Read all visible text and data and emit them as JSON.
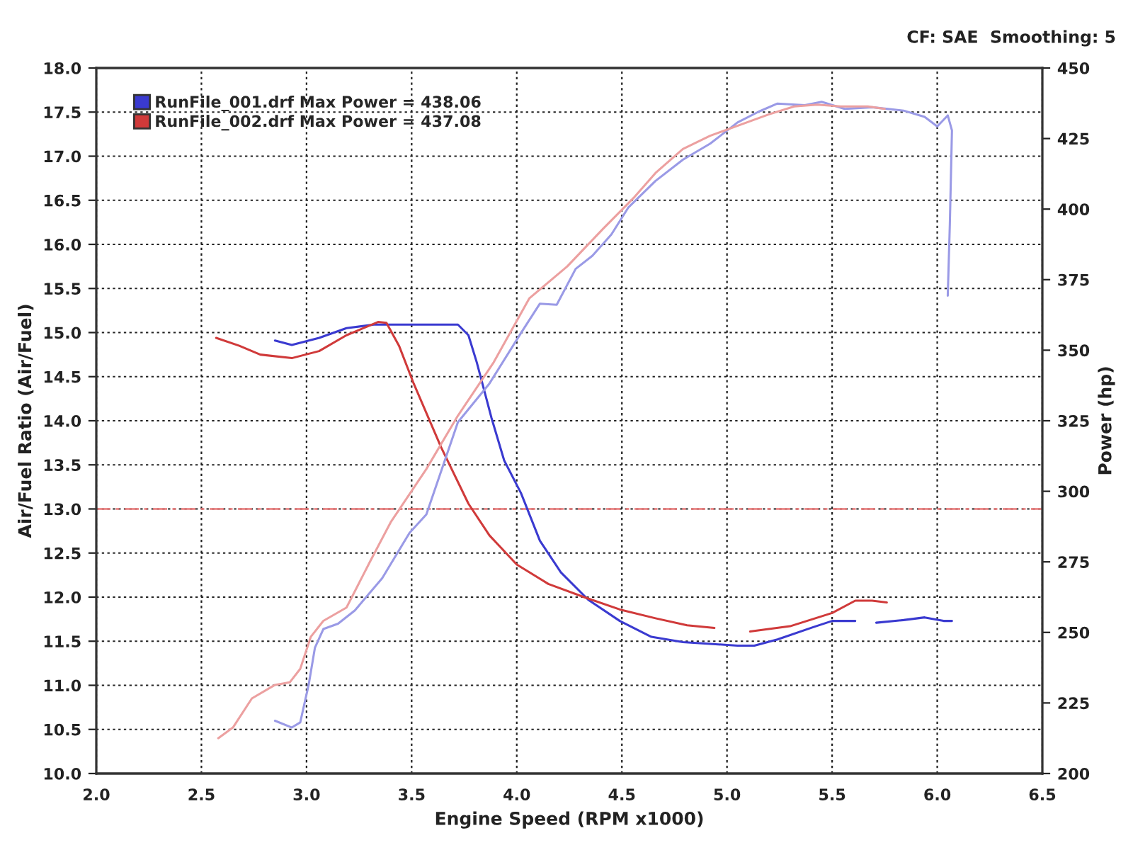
{
  "chart_data": {
    "type": "line",
    "xlabel": "Engine Speed (RPM x1000)",
    "ylabel": "Air/Fuel Ratio (Air/Fuel)",
    "y2label": "Power (hp)",
    "annotations": [
      "CF: SAE  Smoothing: 5"
    ],
    "xlim": [
      2.0,
      6.5
    ],
    "xticks": [
      {
        "value": 2,
        "label": "2.0"
      },
      2.5,
      {
        "value": 3,
        "label": "3.0"
      },
      3.5,
      {
        "value": 4,
        "label": "4.0"
      },
      4.5,
      {
        "value": 5,
        "label": "5.0"
      },
      5.5,
      {
        "value": 6,
        "label": "6.0"
      },
      6.5
    ],
    "ylim": [
      10.0,
      18.0
    ],
    "yticks": [
      {
        "value": 10,
        "label": "10.0"
      },
      10.5,
      {
        "value": 11,
        "label": "11.0"
      },
      11.5,
      {
        "value": 12,
        "label": "12.0"
      },
      12.5,
      {
        "value": 13,
        "label": "13.0"
      },
      13.5,
      {
        "value": 14,
        "label": "14.0"
      },
      14.5,
      {
        "value": 15,
        "label": "15.0"
      },
      15.5,
      {
        "value": 16,
        "label": "16.0"
      },
      16.5,
      {
        "value": 17,
        "label": "17.0"
      },
      17.5,
      {
        "value": 18,
        "label": "18.0"
      }
    ],
    "y2lim": [
      200,
      450
    ],
    "y2ticks": [
      200,
      225,
      250,
      275,
      300,
      325,
      350,
      375,
      400,
      425,
      450
    ],
    "grid": true,
    "legend": "top left",
    "ref_lines": [
      {
        "axis": "y",
        "value": 13.0,
        "color": "#e87878",
        "line_style": "dashed"
      }
    ],
    "series": [
      {
        "name": "RunFile_001.drf Max Power = 438.06",
        "color": "#3a3ad0",
        "x": [
          2.85,
          2.93,
          3.06,
          3.19,
          3.32,
          3.51,
          3.72,
          3.77,
          3.81,
          3.85,
          3.88,
          3.94,
          4.02,
          4.11,
          4.21,
          4.34,
          4.49,
          4.64,
          4.79,
          5.05,
          5.13,
          5.24,
          5.41,
          5.5,
          5.61,
          5.66,
          5.71,
          5.84,
          5.94,
          6.03,
          6.07
        ],
        "values": [
          14.91,
          14.86,
          14.94,
          15.05,
          15.09,
          15.09,
          15.09,
          14.97,
          14.66,
          14.3,
          14.03,
          13.55,
          13.18,
          12.64,
          12.28,
          11.97,
          11.73,
          11.55,
          11.49,
          11.45,
          11.45,
          11.52,
          11.66,
          11.73,
          11.73,
          null,
          11.71,
          11.74,
          11.77,
          11.73,
          11.73
        ]
      },
      {
        "name": "RunFile_002.drf Max Power = 437.08",
        "color": "#d03a3a",
        "x": [
          2.57,
          2.68,
          2.78,
          2.93,
          3.06,
          3.19,
          3.34,
          3.38,
          3.44,
          3.51,
          3.64,
          3.77,
          3.87,
          4.0,
          4.15,
          4.32,
          4.49,
          4.66,
          4.81,
          4.94,
          5.03,
          5.11,
          5.3,
          5.5,
          5.61,
          5.69,
          5.76
        ],
        "values": [
          14.94,
          14.85,
          14.75,
          14.71,
          14.79,
          14.97,
          15.12,
          15.11,
          14.85,
          14.42,
          13.7,
          13.06,
          12.7,
          12.37,
          12.15,
          12.0,
          11.86,
          11.76,
          11.68,
          11.65,
          null,
          11.61,
          11.67,
          11.82,
          11.96,
          11.96,
          11.94
        ]
      },
      {
        "color": "#9a9ae6",
        "axis": "y2",
        "x": [
          2.85,
          2.93,
          2.97,
          3.01,
          3.04,
          3.08,
          3.15,
          3.23,
          3.36,
          3.49,
          3.57,
          3.72,
          3.87,
          4.02,
          4.11,
          4.19,
          4.28,
          4.36,
          4.45,
          4.53,
          4.66,
          4.79,
          4.92,
          5.05,
          5.15,
          5.24,
          5.37,
          5.45,
          5.56,
          5.69,
          5.84,
          5.94,
          6.0,
          6.05,
          6.07,
          6.06,
          6.05
        ],
        "values": [
          218.7,
          216.3,
          218.1,
          231.4,
          244.6,
          251.2,
          253.1,
          257.8,
          269.2,
          285.3,
          291.8,
          324.5,
          338.2,
          356.1,
          366.5,
          366.1,
          378.8,
          383.5,
          391.0,
          400.5,
          410.0,
          417.5,
          423.2,
          430.7,
          434.5,
          437.4,
          436.8,
          438.0,
          435.5,
          436.1,
          434.9,
          432.7,
          429.3,
          433.2,
          427.9,
          394.8,
          369.3
        ]
      },
      {
        "color": "#eca0a0",
        "axis": "y2",
        "x": [
          2.58,
          2.65,
          2.74,
          2.85,
          2.92,
          2.97,
          3.02,
          3.08,
          3.19,
          3.3,
          3.4,
          3.57,
          3.72,
          3.89,
          4.06,
          4.24,
          4.41,
          4.56,
          4.66,
          4.79,
          4.92,
          5.2,
          5.32,
          5.43,
          5.54,
          5.67,
          5.75
        ],
        "values": [
          212.5,
          216.3,
          226.6,
          231.4,
          232.3,
          237.1,
          248.4,
          254.1,
          258.8,
          274.8,
          289.0,
          307.9,
          326.8,
          345.7,
          368.4,
          379.7,
          393.0,
          404.3,
          412.8,
          421.3,
          426.0,
          433.6,
          436.4,
          437.0,
          436.4,
          436.4,
          435.5
        ]
      }
    ]
  }
}
